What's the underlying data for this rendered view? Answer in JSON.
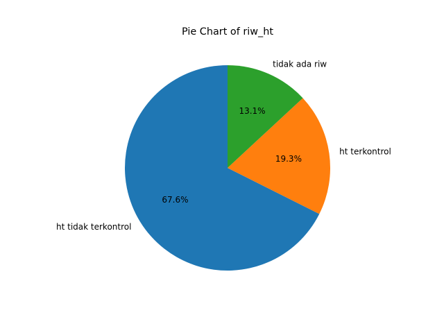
{
  "chart_data": {
    "type": "pie",
    "title": "Pie Chart of riw_ht",
    "categories": [
      "ht tidak terkontrol",
      "ht terkontrol",
      "tidak ada riw"
    ],
    "values": [
      67.6,
      19.3,
      13.1
    ],
    "value_labels": [
      "67.6%",
      "19.3%",
      "13.1%"
    ],
    "colors": [
      "#1f77b4",
      "#ff7f0e",
      "#2ca02c"
    ],
    "start_angle_deg": 90,
    "direction": "counterclockwise",
    "legend": "none"
  }
}
